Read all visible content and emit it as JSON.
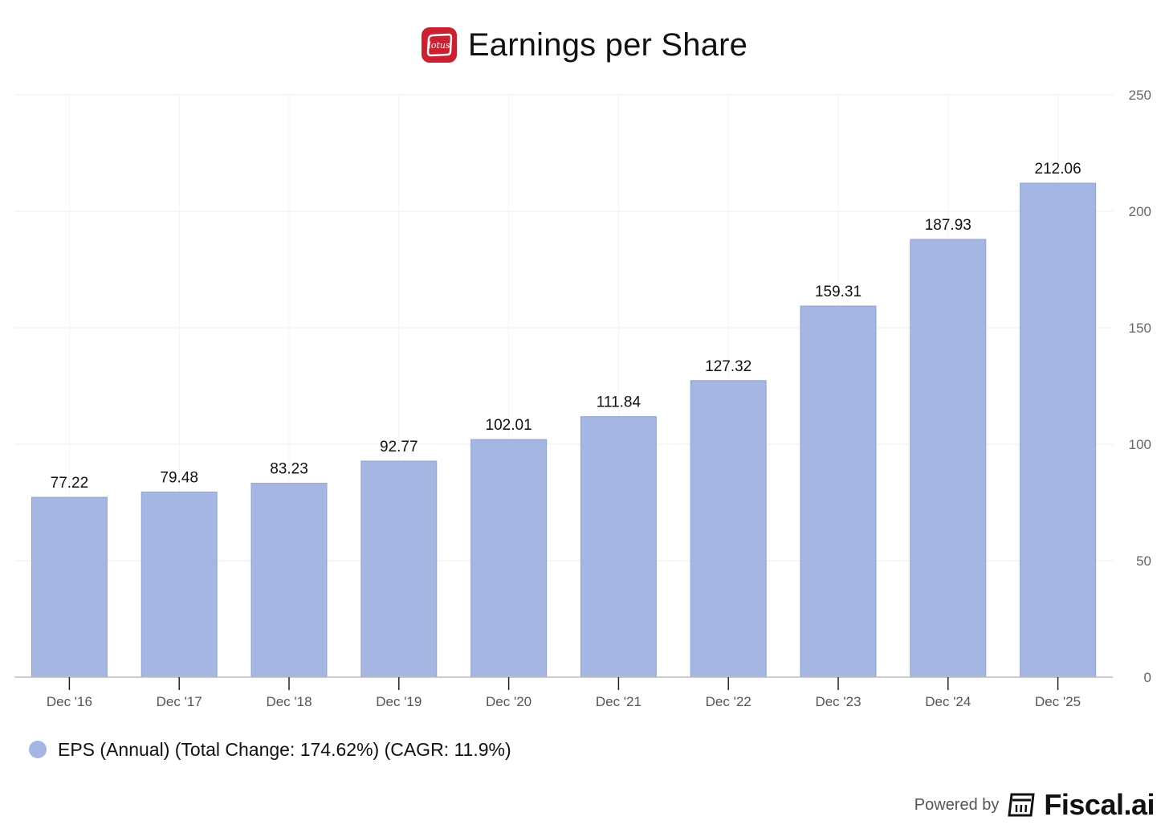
{
  "header": {
    "logo_text": "lotus",
    "title": "Earnings per Share"
  },
  "colors": {
    "bar": "#a4b6e1",
    "bar_edge": "#8fa3d6",
    "logo_bg": "#cf1f2e",
    "grid": "#eeeeee",
    "axis": "#bbbbbb"
  },
  "chart_data": {
    "type": "bar",
    "title": "Earnings per Share",
    "categories": [
      "Dec '16",
      "Dec '17",
      "Dec '18",
      "Dec '19",
      "Dec '20",
      "Dec '21",
      "Dec '22",
      "Dec '23",
      "Dec '24",
      "Dec '25"
    ],
    "series": [
      {
        "name": "EPS (Annual) (Total Change: 174.62%) (CAGR: 11.9%)",
        "values": [
          77.22,
          79.48,
          83.23,
          92.77,
          102.01,
          111.84,
          127.32,
          159.31,
          187.93,
          212.06
        ],
        "labels": [
          "77.22",
          "79.48",
          "83.23",
          "92.77",
          "102.01",
          "111.84",
          "127.32",
          "159.31",
          "187.93",
          "212.06"
        ]
      }
    ],
    "ylim": [
      0,
      250
    ],
    "yticks": [
      0,
      50,
      100,
      150,
      200,
      250
    ],
    "ytick_labels": [
      "0",
      "50",
      "100",
      "150",
      "200",
      "250"
    ],
    "y_axis_side": "right",
    "grid": true,
    "legend_position": "bottom-left",
    "xlabel": "",
    "ylabel": ""
  },
  "legend": {
    "label": "EPS (Annual) (Total Change: 174.62%) (CAGR: 11.9%)"
  },
  "footer": {
    "powered_by": "Powered by",
    "brand": "Fiscal.ai"
  }
}
